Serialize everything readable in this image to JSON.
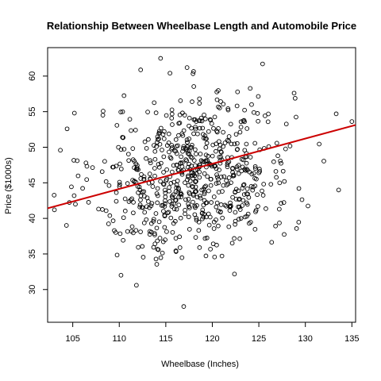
{
  "chart_data": {
    "type": "scatter",
    "title": "Relationship Between Wheelbase Length and Automobile Price",
    "xlabel": "Wheelbase (Inches)",
    "ylabel": "Price ($1000s)",
    "xlim": [
      102.3,
      135.4
    ],
    "ylim": [
      25.4,
      64.0
    ],
    "x_ticks": [
      105,
      110,
      115,
      120,
      125,
      130,
      135
    ],
    "y_ticks": [
      30,
      35,
      40,
      45,
      50,
      55,
      60
    ],
    "grid": false,
    "legend": "none",
    "point_count": 700,
    "regression_line": {
      "color": "#cc0000",
      "slope": 0.354,
      "intercept": 5.2,
      "x_range": [
        102.3,
        135.4
      ]
    },
    "point_color": "#000000",
    "line_color": "#cc0000"
  }
}
